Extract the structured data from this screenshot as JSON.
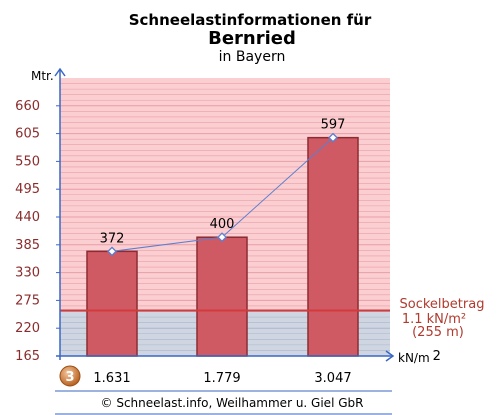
{
  "header": {
    "title": "Schneelastinformationen für",
    "place": "Bernried",
    "region": "in Bayern"
  },
  "chart_data": {
    "type": "bar",
    "ylabel": "Mtr.",
    "xlabel": "kN/m",
    "xlabel_exp": "2",
    "ylim": [
      165,
      715
    ],
    "yticks": [
      165,
      220,
      275,
      330,
      385,
      440,
      495,
      550,
      605,
      660
    ],
    "grid": true,
    "categories": [
      "372",
      "400",
      "597"
    ],
    "values": [
      372,
      400,
      597
    ],
    "line_values": [
      372,
      400,
      597
    ],
    "loads": [
      "1.631",
      "1.779",
      "3.047"
    ],
    "colors": {
      "bar": "#d05a64",
      "bar_border": "#8a2c32",
      "upper_bg": "#fbcfd1",
      "lower_bg": "#cfd6e2",
      "line": "#5b7ed0",
      "axis": "#3a67c4",
      "sockel_line": "#d43a3a"
    },
    "sockel": {
      "value": 255,
      "label": "Sockelbetrag",
      "load": "1.1 kN/m²",
      "height": "(255 m)"
    },
    "zone": {
      "number": "3",
      "color": "#c8732a"
    }
  },
  "footer": {
    "copyright": "© Schneelast.info, Weilhammer u. Giel GbR"
  }
}
